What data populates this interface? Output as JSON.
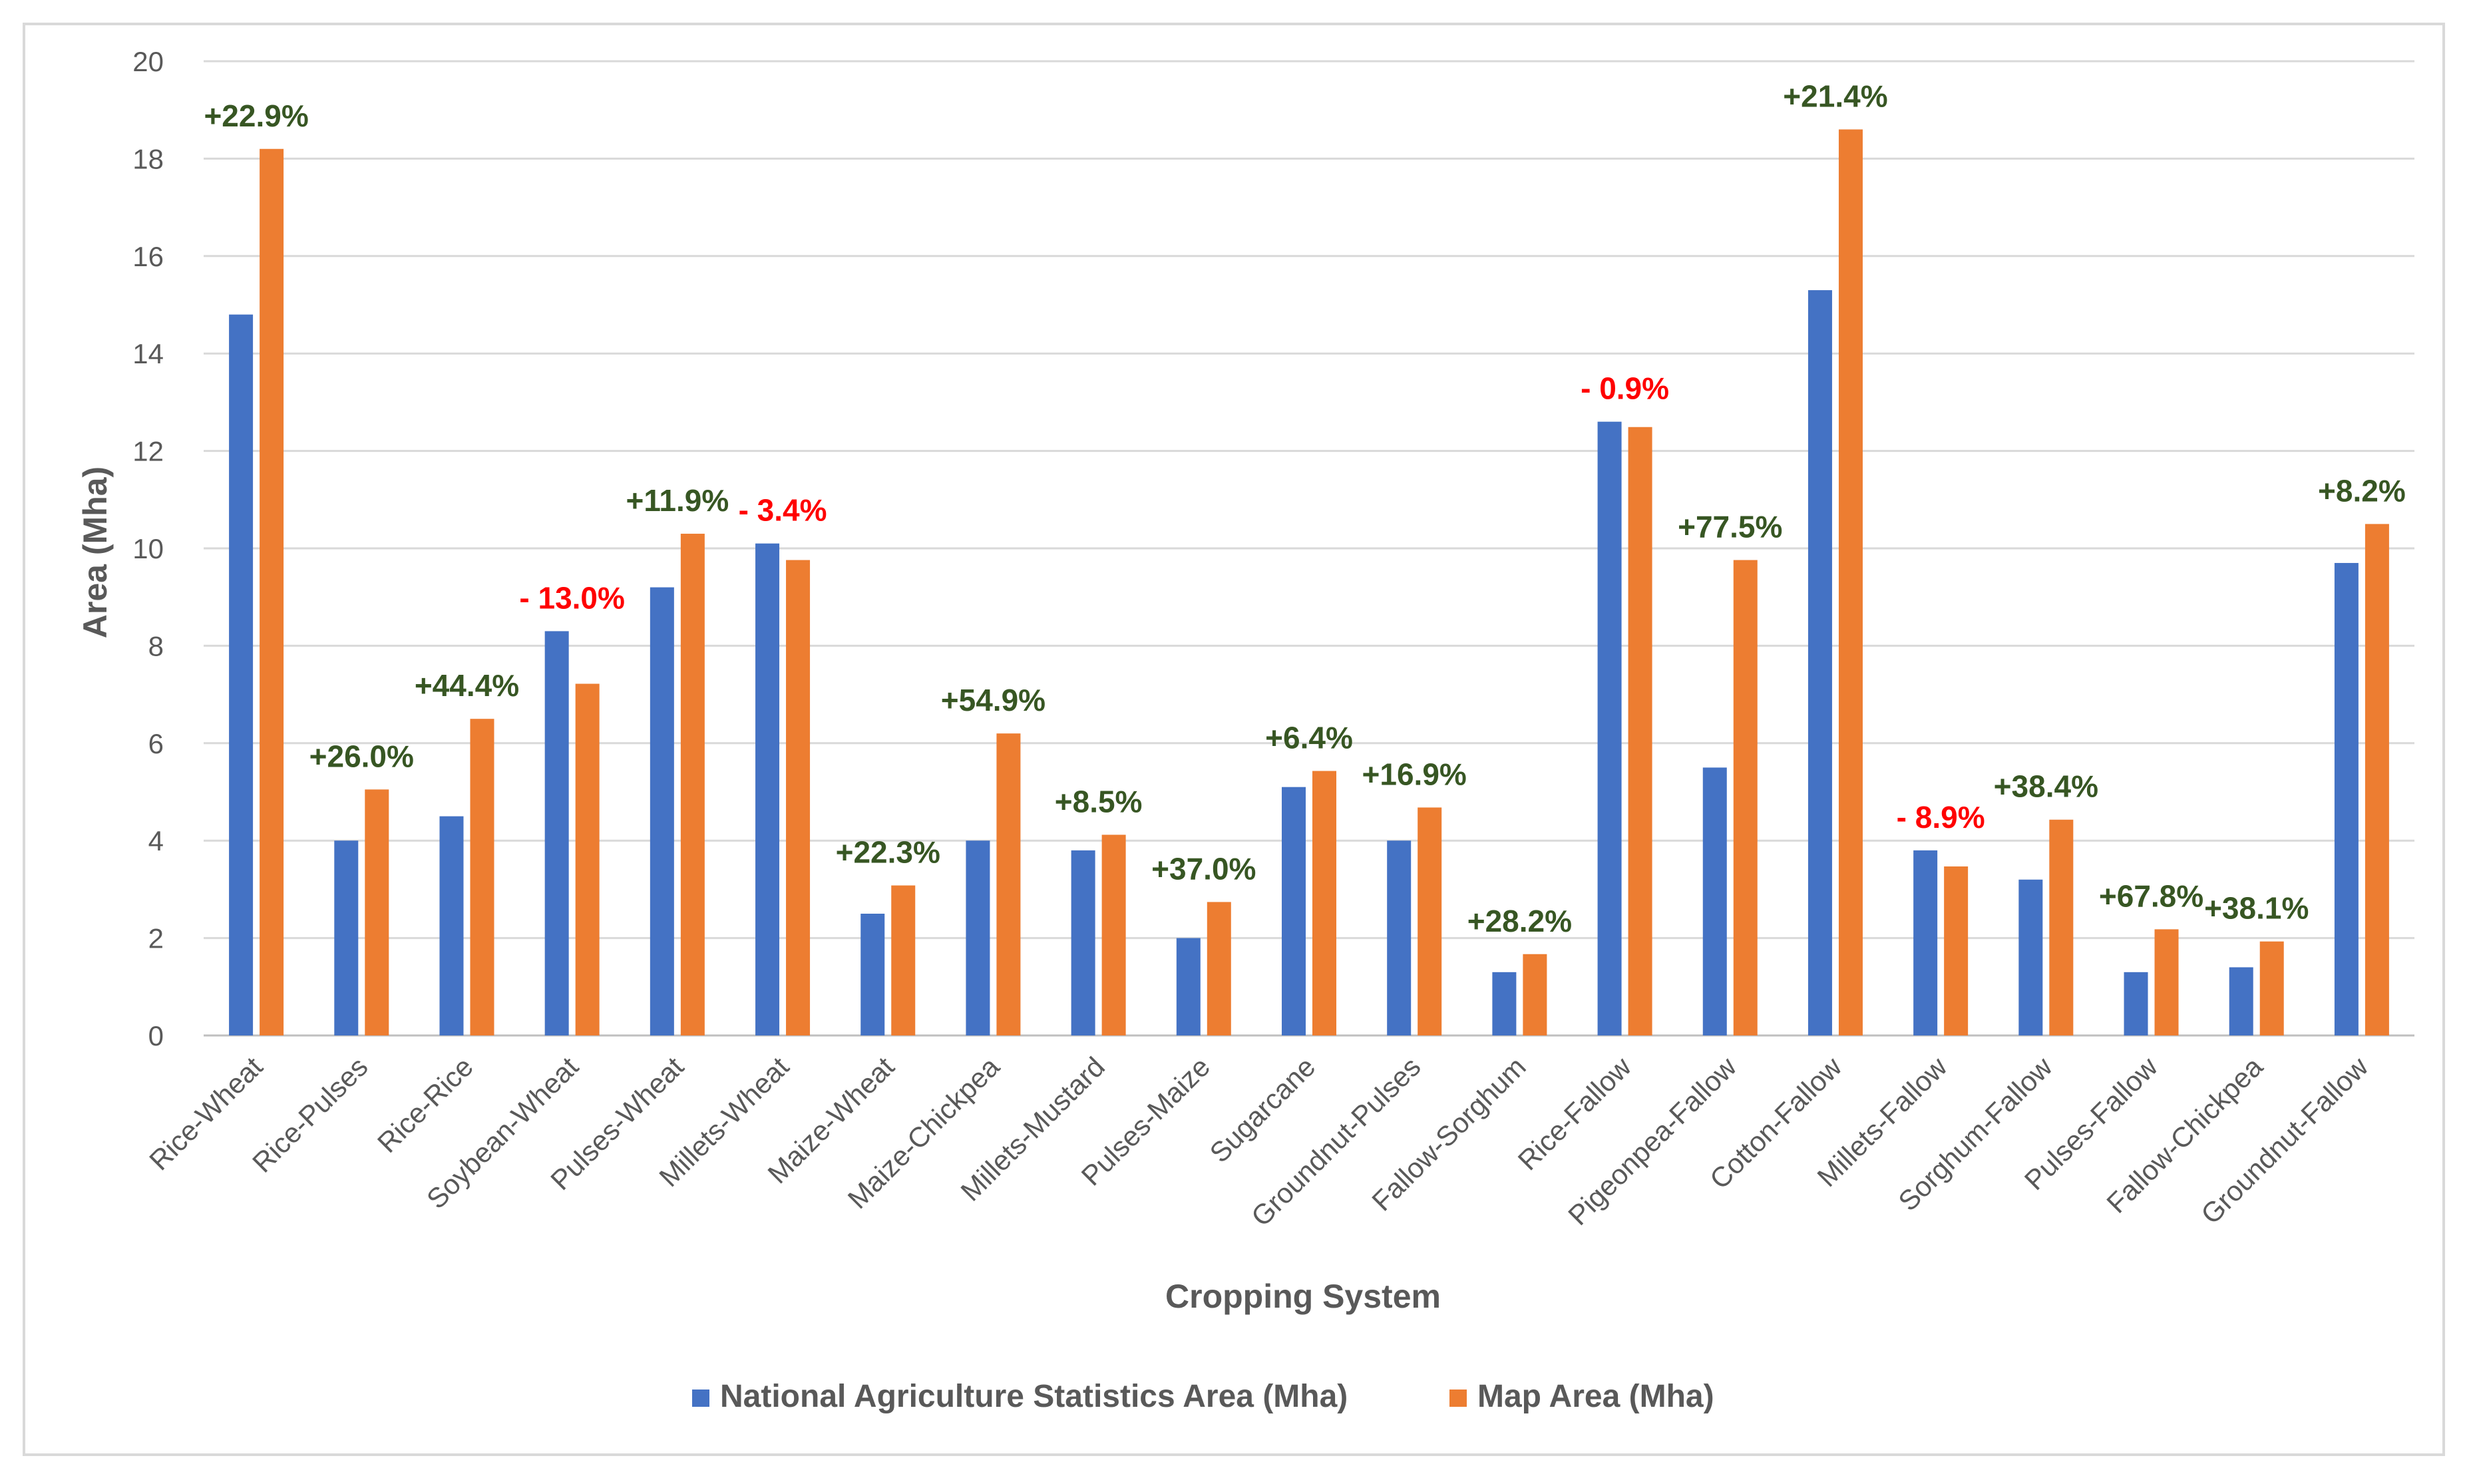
{
  "chart_data": {
    "type": "bar",
    "title": "",
    "xlabel": "Cropping System",
    "ylabel": "Area (Mha)",
    "ylim": [
      0,
      20
    ],
    "yticks": [
      0,
      2,
      4,
      6,
      8,
      10,
      12,
      14,
      16,
      18,
      20
    ],
    "grid": true,
    "legend_position": "bottom",
    "categories": [
      "Rice-Wheat",
      "Rice-Pulses",
      "Rice-Rice",
      "Soybean-Wheat",
      "Pulses-Wheat",
      "Millets-Wheat",
      "Maize-Wheat",
      "Maize-Chickpea",
      "Millets-Mustard",
      "Pulses-Maize",
      "Sugarcane",
      "Groundnut-Pulses",
      "Fallow-Sorghum",
      "Rice-Fallow",
      "Pigeonpea-Fallow",
      "Cotton-Fallow",
      "Millets-Fallow",
      "Sorghum-Fallow",
      "Pulses-Fallow",
      "Fallow-Chickpea",
      "Groundnut-Fallow"
    ],
    "series": [
      {
        "name": "National Agriculture Statistics Area (Mha)",
        "color": "#4472c4",
        "values": [
          14.8,
          4.0,
          4.5,
          8.3,
          9.2,
          10.1,
          2.5,
          4.0,
          3.8,
          2.0,
          5.1,
          4.0,
          1.3,
          12.6,
          5.5,
          15.3,
          3.8,
          3.2,
          1.3,
          1.4,
          9.7
        ]
      },
      {
        "name": "Map Area (Mha)",
        "color": "#ed7d31",
        "values": [
          18.2,
          5.05,
          6.5,
          7.22,
          10.3,
          9.76,
          3.08,
          6.2,
          4.12,
          2.74,
          5.43,
          4.68,
          1.67,
          12.49,
          9.76,
          18.6,
          3.47,
          4.43,
          2.18,
          1.93,
          10.5
        ]
      }
    ],
    "annotations": [
      {
        "text": "+22.9%",
        "color": "#375623"
      },
      {
        "text": "+26.0%",
        "color": "#375623"
      },
      {
        "text": "+44.4%",
        "color": "#375623"
      },
      {
        "text": "- 13.0%",
        "color": "#ff0000"
      },
      {
        "text": "+11.9%",
        "color": "#375623"
      },
      {
        "text": "- 3.4%",
        "color": "#ff0000"
      },
      {
        "text": "+22.3%",
        "color": "#375623"
      },
      {
        "text": "+54.9%",
        "color": "#375623"
      },
      {
        "text": "+8.5%",
        "color": "#375623"
      },
      {
        "text": "+37.0%",
        "color": "#375623"
      },
      {
        "text": "+6.4%",
        "color": "#375623"
      },
      {
        "text": "+16.9%",
        "color": "#375623"
      },
      {
        "text": "+28.2%",
        "color": "#375623"
      },
      {
        "text": "- 0.9%",
        "color": "#ff0000"
      },
      {
        "text": "+77.5%",
        "color": "#375623"
      },
      {
        "text": "+21.4%",
        "color": "#375623"
      },
      {
        "text": "- 8.9%",
        "color": "#ff0000"
      },
      {
        "text": "+38.4%",
        "color": "#375623"
      },
      {
        "text": "+67.8%",
        "color": "#375623"
      },
      {
        "text": "+38.1%",
        "color": "#375623"
      },
      {
        "text": "+8.2%",
        "color": "#375623"
      }
    ]
  }
}
